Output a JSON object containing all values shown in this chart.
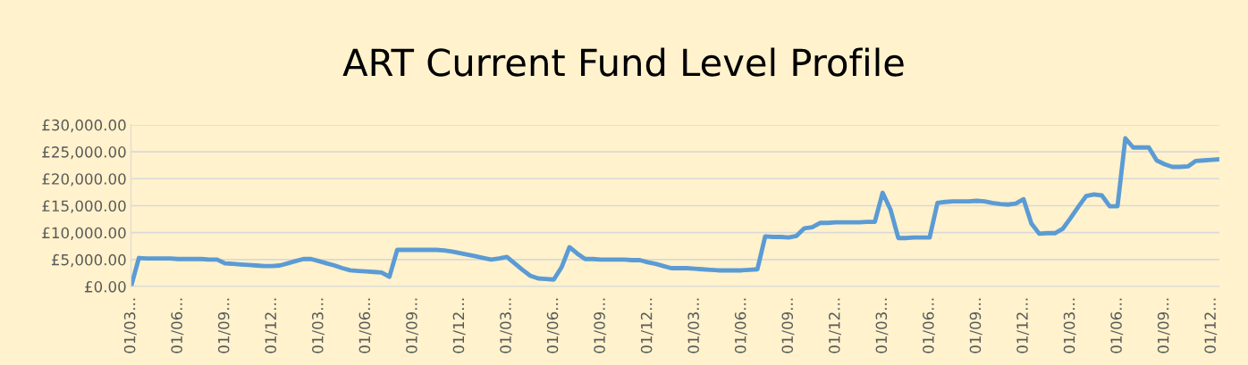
{
  "chart_data": {
    "type": "line",
    "title": "ART Current Fund Level Profile",
    "categories": [
      "01/03...",
      null,
      null,
      null,
      null,
      null,
      "01/06...",
      null,
      null,
      null,
      null,
      null,
      "01/09...",
      null,
      null,
      null,
      null,
      null,
      "01/12...",
      null,
      null,
      null,
      null,
      null,
      "01/03...",
      null,
      null,
      null,
      null,
      null,
      "01/06...",
      null,
      null,
      null,
      null,
      null,
      "01/09...",
      null,
      null,
      null,
      null,
      null,
      "01/12...",
      null,
      null,
      null,
      null,
      null,
      "01/03...",
      null,
      null,
      null,
      null,
      null,
      "01/06...",
      null,
      null,
      null,
      null,
      null,
      "01/09...",
      null,
      null,
      null,
      null,
      null,
      "01/12...",
      null,
      null,
      null,
      null,
      null,
      "01/03...",
      null,
      null,
      null,
      null,
      null,
      "01/06...",
      null,
      null,
      null,
      null,
      null,
      "01/09...",
      null,
      null,
      null,
      null,
      null,
      "01/12...",
      null,
      null,
      null,
      null,
      null,
      "01/03...",
      null,
      null,
      null,
      null,
      null,
      "01/06...",
      null,
      null,
      null,
      null,
      null,
      "01/09...",
      null,
      null,
      null,
      null,
      null,
      "01/12...",
      null,
      null,
      null,
      null,
      null,
      "01/03...",
      null,
      null,
      null,
      null,
      null,
      "01/06...",
      null,
      null,
      null,
      null,
      null,
      "01/09...",
      null,
      null,
      null,
      null,
      null,
      "01/12...",
      null
    ],
    "series": [
      {
        "color": "#5b9bd5",
        "values": [
          0,
          5300,
          5200,
          5200,
          5200,
          5200,
          5100,
          5100,
          5100,
          5100,
          5000,
          5000,
          4300,
          4200,
          4100,
          4000,
          3900,
          3800,
          3800,
          3900,
          4300,
          4700,
          5100,
          5100,
          4700,
          4300,
          3900,
          3400,
          3000,
          2900,
          2800,
          2700,
          2600,
          1800,
          6800,
          6800,
          6800,
          6800,
          6800,
          6800,
          6700,
          6500,
          6200,
          5900,
          5600,
          5300,
          5000,
          5200,
          5500,
          4300,
          3100,
          2000,
          1500,
          1400,
          1300,
          3600,
          7300,
          6100,
          5100,
          5100,
          5000,
          5000,
          5000,
          5000,
          4900,
          4900,
          4500,
          4200,
          3800,
          3400,
          3400,
          3400,
          3300,
          3200,
          3100,
          3000,
          3000,
          3000,
          3000,
          3100,
          3200,
          9300,
          9200,
          9200,
          9100,
          9400,
          10800,
          11000,
          11800,
          11800,
          11900,
          11900,
          11900,
          11900,
          12000,
          12000,
          17400,
          14300,
          9000,
          9000,
          9100,
          9100,
          9100,
          15500,
          15700,
          15800,
          15800,
          15800,
          15900,
          15800,
          15500,
          15300,
          15200,
          15400,
          16200,
          11700,
          9800,
          9900,
          9900,
          10700,
          12700,
          14800,
          16800,
          17100,
          16900,
          14900,
          14900,
          27500,
          25800,
          25800,
          25800,
          23400,
          22700,
          22200,
          22200,
          22300,
          23300,
          23400,
          23500,
          23600
        ]
      }
    ],
    "ylim": [
      0,
      30000
    ],
    "yticks": [
      {
        "value": 0,
        "label": "£0.00"
      },
      {
        "value": 5000,
        "label": "£5,000.00"
      },
      {
        "value": 10000,
        "label": "£10,000.00"
      },
      {
        "value": 15000,
        "label": "£15,000.00"
      },
      {
        "value": 20000,
        "label": "£20,000.00"
      },
      {
        "value": 25000,
        "label": "£25,000.00"
      },
      {
        "value": 30000,
        "label": "£30,000.00"
      }
    ],
    "grid": "y",
    "line_style": "solid",
    "marker": "none"
  }
}
